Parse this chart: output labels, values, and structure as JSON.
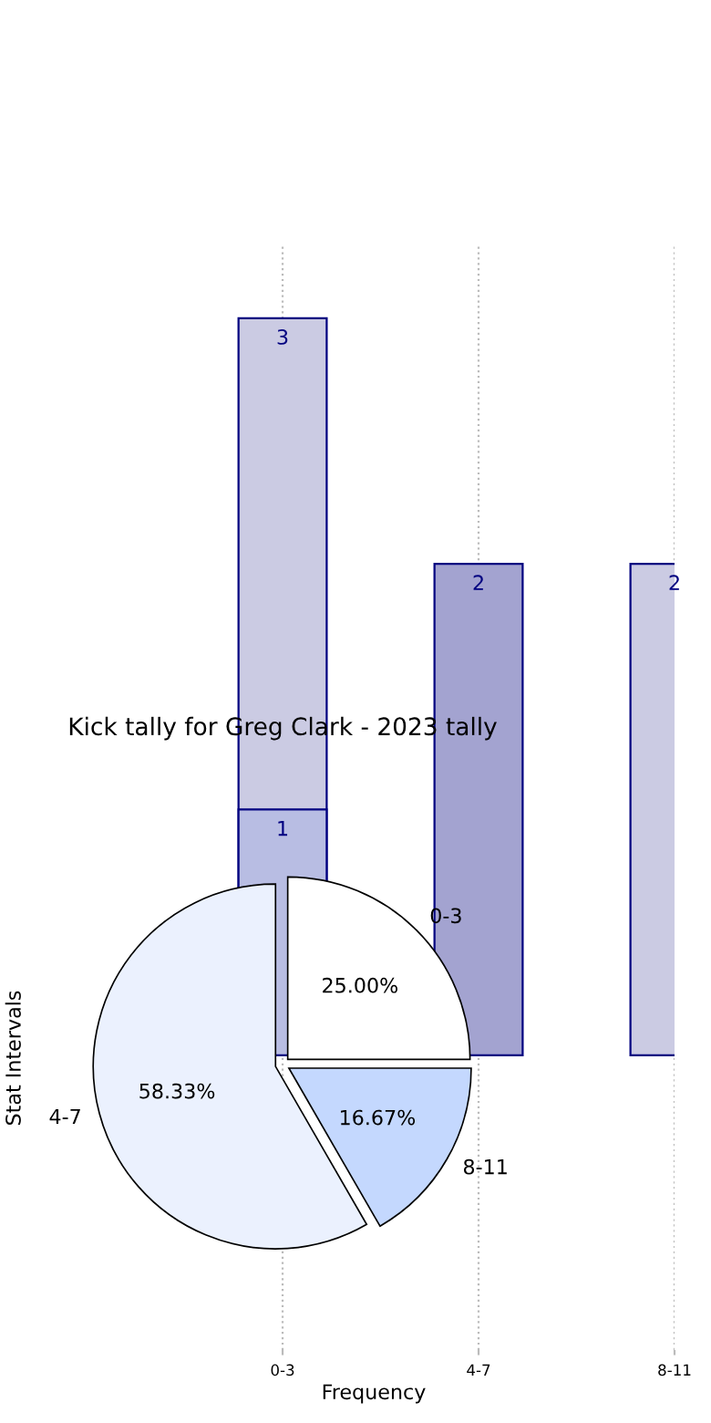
{
  "chart_data": [
    {
      "type": "bar",
      "xlabel": "Frequency",
      "ylabel": "Stat Intervals",
      "categories": [
        "0-3",
        "4-7",
        "8-11"
      ],
      "ylim": [
        -1.2,
        3.3
      ],
      "tick_labels": "x",
      "grid": "x",
      "data_labels": true,
      "series": [
        {
          "colors": [
            "#cbcbe3",
            "#a3a3d0",
            "#cbcbe3"
          ],
          "values": [
            3,
            2,
            2
          ]
        },
        {
          "color": "#b8bde3",
          "values": [
            1,
            null,
            null
          ]
        }
      ]
    },
    {
      "type": "pie",
      "title": "Kick tally for Greg Clark - 2023 tally",
      "categories": [
        "0-3",
        "4-7",
        "8-11"
      ],
      "values": [
        25.0,
        58.33,
        16.67
      ],
      "value_labels": [
        "25.00%",
        "58.33%",
        "16.67%"
      ],
      "colors": [
        "#ffffff",
        "#ebf1fe",
        "#c4d8fe"
      ]
    }
  ]
}
